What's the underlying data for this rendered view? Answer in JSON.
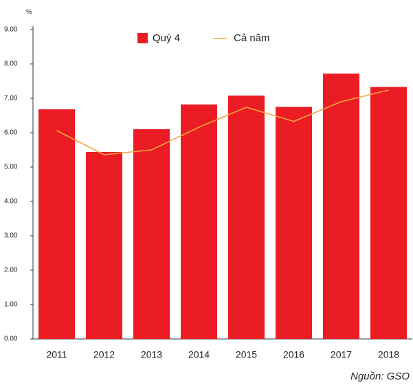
{
  "chart_data": {
    "type": "bar",
    "y_label": "%",
    "categories": [
      "2011",
      "2012",
      "2013",
      "2014",
      "2015",
      "2016",
      "2017",
      "2018"
    ],
    "series": [
      {
        "name": "Quý 4",
        "type": "bar",
        "color": "#ec1c24",
        "values": [
          6.68,
          5.44,
          6.1,
          6.82,
          7.08,
          6.75,
          7.72,
          7.33
        ]
      },
      {
        "name": "Cả năm",
        "type": "line",
        "color": "#f7a541",
        "values": [
          6.06,
          5.36,
          5.5,
          6.16,
          6.74,
          6.33,
          6.9,
          7.24
        ]
      }
    ],
    "ylim": [
      0,
      9
    ],
    "yticks": [
      {
        "value": 0,
        "label": "0.00"
      },
      {
        "value": 1,
        "label": "1.00"
      },
      {
        "value": 2,
        "label": "2.00"
      },
      {
        "value": 3,
        "label": "3.00"
      },
      {
        "value": 4,
        "label": "4.00"
      },
      {
        "value": 5,
        "label": "5.00"
      },
      {
        "value": 6,
        "label": "6.00"
      },
      {
        "value": 7,
        "label": "7.00"
      },
      {
        "value": 8,
        "label": "8.00"
      },
      {
        "value": 9,
        "label": "9.00"
      }
    ],
    "legend": "top",
    "source": "Nguồn: GSO"
  }
}
